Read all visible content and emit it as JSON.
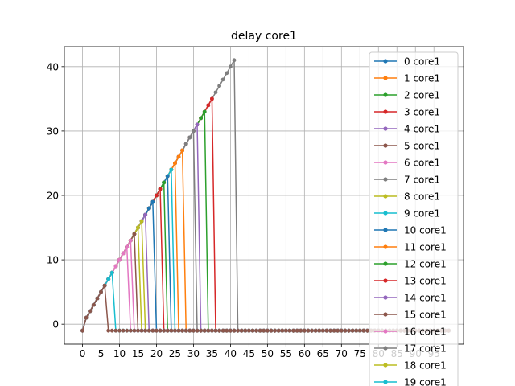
{
  "chart_data": {
    "type": "line",
    "title": "delay core1",
    "xlabel": "",
    "ylabel": "",
    "xlim": [
      -4.9,
      103
    ],
    "ylim": [
      -3.1,
      43.1
    ],
    "x_ticks": [
      0,
      5,
      10,
      15,
      20,
      25,
      30,
      35,
      40,
      45,
      50,
      55,
      60,
      65,
      70,
      75,
      80,
      85,
      90,
      95
    ],
    "y_ticks": [
      0,
      10,
      20,
      30,
      40
    ],
    "grid": true,
    "legend_position": "right",
    "x_max": 99,
    "baseline": -1,
    "series": [
      {
        "name": "0 core1",
        "color": "#1f77b4",
        "peak": 19
      },
      {
        "name": "1 core1",
        "color": "#ff7f0e",
        "peak": 27
      },
      {
        "name": "2 core1",
        "color": "#2ca02c",
        "peak": 33
      },
      {
        "name": "3 core1",
        "color": "#d62728",
        "peak": 35
      },
      {
        "name": "4 core1",
        "color": "#9467bd",
        "peak": 31
      },
      {
        "name": "5 core1",
        "color": "#8c564b",
        "peak": 6
      },
      {
        "name": "6 core1",
        "color": "#e377c2",
        "peak": 12
      },
      {
        "name": "7 core1",
        "color": "#7f7f7f",
        "peak": 41
      },
      {
        "name": "8 core1",
        "color": "#bcbd22",
        "peak": 16
      },
      {
        "name": "9 core1",
        "color": "#17becf",
        "peak": 8
      },
      {
        "name": "10 core1",
        "color": "#1f77b4",
        "peak": 23
      },
      {
        "name": "11 core1",
        "color": "#ff7f0e",
        "peak": 25
      },
      {
        "name": "12 core1",
        "color": "#2ca02c",
        "peak": 22
      },
      {
        "name": "13 core1",
        "color": "#d62728",
        "peak": 21
      },
      {
        "name": "14 core1",
        "color": "#9467bd",
        "peak": 17
      },
      {
        "name": "15 core1",
        "color": "#8c564b",
        "peak": 14
      },
      {
        "name": "16 core1",
        "color": "#e377c2",
        "peak": 13
      },
      {
        "name": "17 core1",
        "color": "#7f7f7f",
        "peak": 30
      },
      {
        "name": "18 core1",
        "color": "#bcbd22",
        "peak": 15
      },
      {
        "name": "19 core1",
        "color": "#17becf",
        "peak": 24
      }
    ]
  }
}
